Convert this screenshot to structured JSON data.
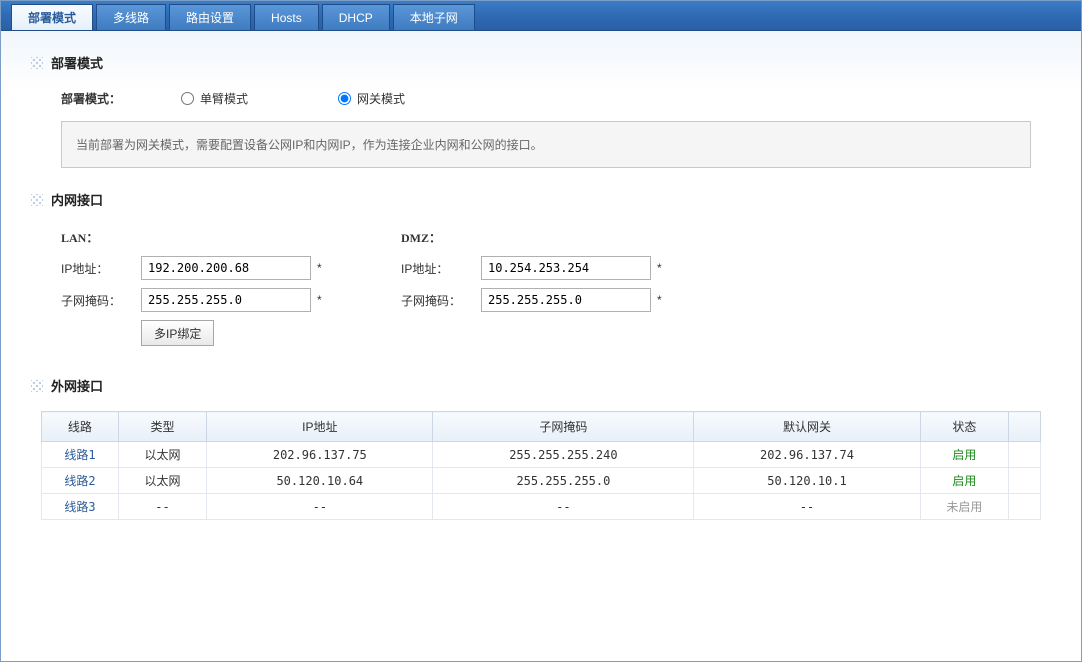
{
  "tabs": [
    {
      "label": "部署模式",
      "active": true
    },
    {
      "label": "多线路",
      "active": false
    },
    {
      "label": "路由设置",
      "active": false
    },
    {
      "label": "Hosts",
      "active": false
    },
    {
      "label": "DHCP",
      "active": false
    },
    {
      "label": "本地子网",
      "active": false
    }
  ],
  "sections": {
    "deploy": {
      "title": "部署模式",
      "field_label": "部署模式：",
      "options": {
        "single_arm": {
          "label": "单臂模式",
          "selected": false
        },
        "gateway": {
          "label": "网关模式",
          "selected": true
        }
      },
      "info": "当前部署为网关模式，需要配置设备公网IP和内网IP，作为连接企业内网和公网的接口。"
    },
    "lan_iface": {
      "title": "内网接口",
      "lan": {
        "header": "LAN：",
        "ip_label": "IP地址：",
        "ip_value": "192.200.200.68",
        "mask_label": "子网掩码：",
        "mask_value": "255.255.255.0",
        "multi_ip_btn": "多IP绑定"
      },
      "dmz": {
        "header": "DMZ：",
        "ip_label": "IP地址：",
        "ip_value": "10.254.253.254",
        "mask_label": "子网掩码：",
        "mask_value": "255.255.255.0"
      }
    },
    "wan_iface": {
      "title": "外网接口",
      "columns": [
        "线路",
        "类型",
        "IP地址",
        "子网掩码",
        "默认网关",
        "状态"
      ],
      "rows": [
        {
          "line": "线路1",
          "type": "以太网",
          "ip": "202.96.137.75",
          "mask": "255.255.255.240",
          "gw": "202.96.137.74",
          "status": "启用",
          "status_on": true
        },
        {
          "line": "线路2",
          "type": "以太网",
          "ip": "50.120.10.64",
          "mask": "255.255.255.0",
          "gw": "50.120.10.1",
          "status": "启用",
          "status_on": true
        },
        {
          "line": "线路3",
          "type": "--",
          "ip": "--",
          "mask": "--",
          "gw": "--",
          "status": "未启用",
          "status_on": false
        }
      ]
    }
  },
  "required_mark": "*"
}
